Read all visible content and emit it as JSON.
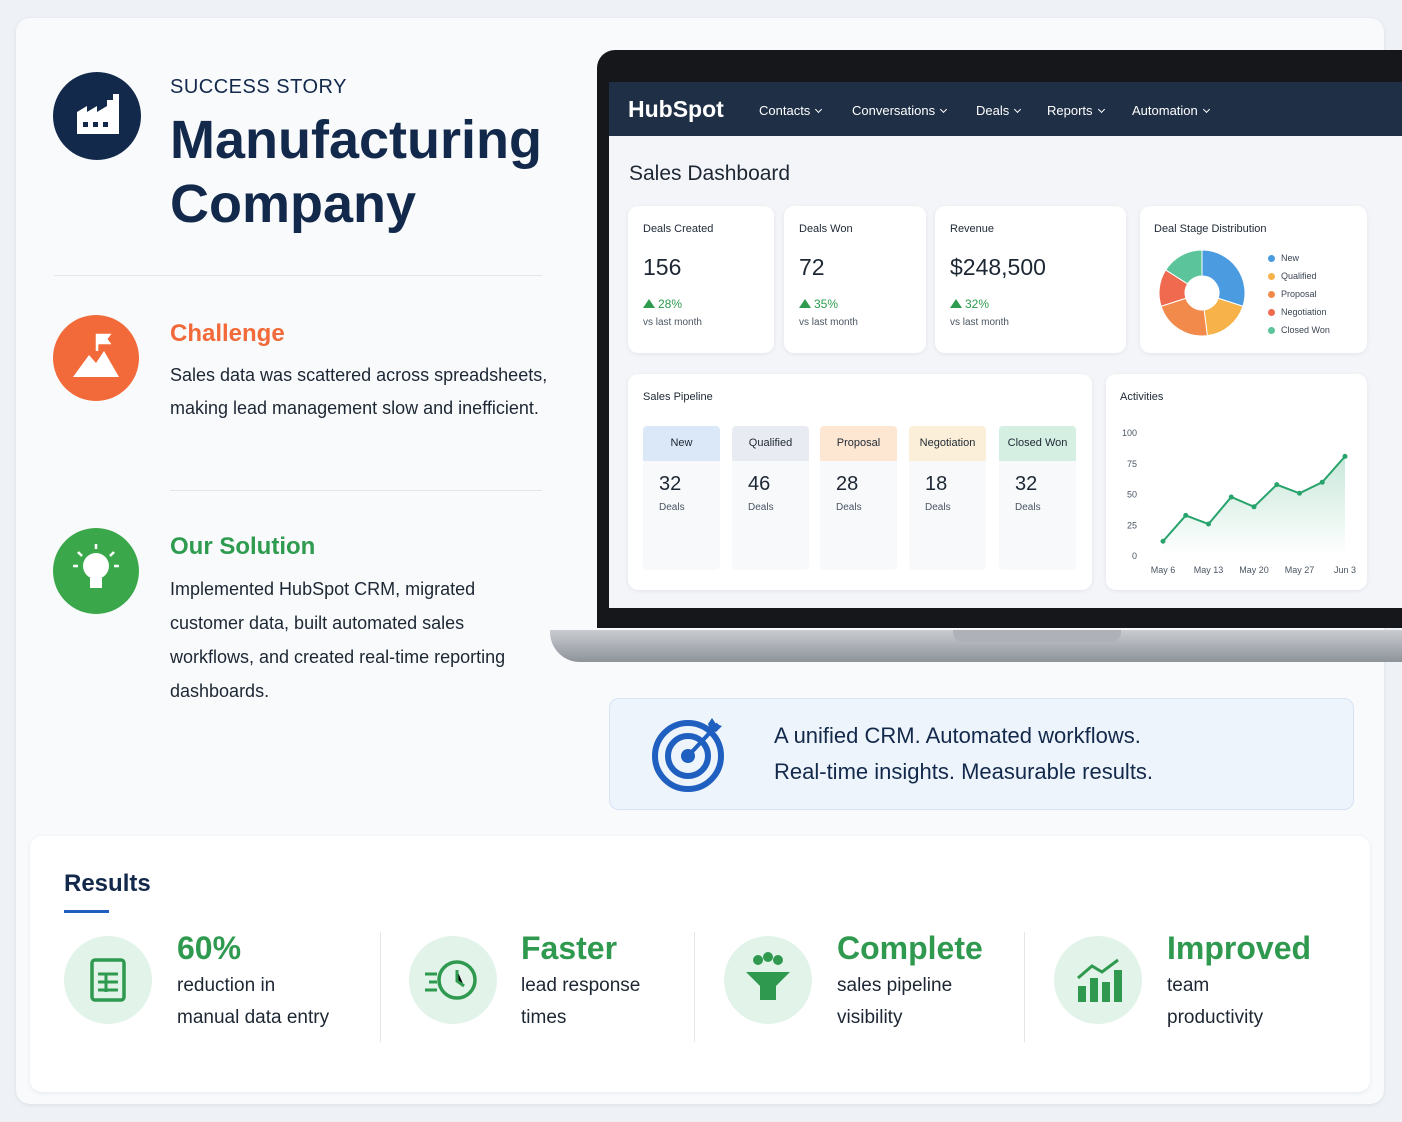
{
  "header": {
    "eyebrow": "SUCCESS STORY",
    "title": "Manufacturing Company"
  },
  "challenge": {
    "title": "Challenge",
    "text": "Sales data was scattered across spreadsheets, making lead management slow and inefficient."
  },
  "solution": {
    "title": "Our Solution",
    "text": "Implemented HubSpot CRM, migrated customer data, built automated sales workflows, and created real-time reporting dashboards."
  },
  "dashboard": {
    "brand": "HubSpot",
    "nav": [
      "Contacts",
      "Conversations",
      "Deals",
      "Reports",
      "Automation"
    ],
    "title": "Sales Dashboard",
    "kpis": [
      {
        "label": "Deals Created",
        "value": "156",
        "change": "28%",
        "note": "vs last month"
      },
      {
        "label": "Deals Won",
        "value": "72",
        "change": "35%",
        "note": "vs last month"
      },
      {
        "label": "Revenue",
        "value": "$248,500",
        "change": "32%",
        "note": "vs last month"
      }
    ],
    "deal_stage": {
      "type": "pie",
      "title": "Deal Stage Distribution",
      "categories": [
        "New",
        "Qualified",
        "Proposal",
        "Negotiation",
        "Closed Won"
      ],
      "values": [
        30,
        18,
        22,
        14,
        16
      ],
      "colors": [
        "#4a9be0",
        "#f7b24a",
        "#f28a4b",
        "#ef6a4e",
        "#5cc49b"
      ]
    },
    "pipeline": {
      "title": "Sales Pipeline",
      "stages": [
        {
          "name": "New",
          "count": "32",
          "unit": "Deals"
        },
        {
          "name": "Qualified",
          "count": "46",
          "unit": "Deals"
        },
        {
          "name": "Proposal",
          "count": "28",
          "unit": "Deals"
        },
        {
          "name": "Negotiation",
          "count": "18",
          "unit": "Deals"
        },
        {
          "name": "Closed Won",
          "count": "32",
          "unit": "Deals"
        }
      ]
    },
    "activities": {
      "type": "line",
      "title": "Activities",
      "categories": [
        "May 6",
        null,
        "May 13",
        null,
        "May 20",
        null,
        "May 27",
        null,
        "Jun 3"
      ],
      "values": [
        12,
        33,
        26,
        48,
        40,
        58,
        51,
        60,
        81
      ],
      "color": "#27a36b",
      "ylim": [
        0,
        100
      ],
      "yticks": [
        0,
        25,
        50,
        75,
        100
      ],
      "grid": false
    }
  },
  "tagline": [
    "A unified CRM. Automated workflows.",
    "Real-time insights. Measurable results."
  ],
  "results": {
    "title": "Results",
    "items": [
      {
        "headline": "60%",
        "text": "reduction in manual data entry"
      },
      {
        "headline": "Faster",
        "text": "lead response times"
      },
      {
        "headline": "Complete",
        "text": "sales pipeline visibility"
      },
      {
        "headline": "Improved",
        "text": "team productivity"
      }
    ]
  }
}
